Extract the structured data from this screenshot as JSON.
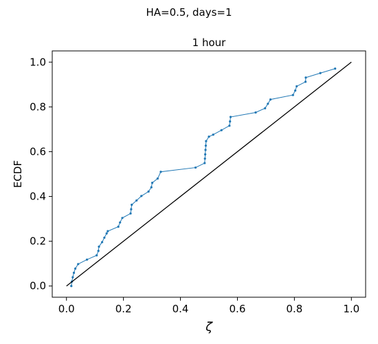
{
  "figure": {
    "suptitle": "HA=0.5, days=1"
  },
  "chart_data": {
    "type": "line",
    "title": "1 hour",
    "xlabel": "ζ",
    "ylabel": "ECDF",
    "xlim": [
      -0.05,
      1.05
    ],
    "ylim": [
      -0.05,
      1.05
    ],
    "xticks": [
      0.0,
      0.2,
      0.4,
      0.6,
      0.8,
      1.0
    ],
    "yticks": [
      0.0,
      0.2,
      0.4,
      0.6,
      0.8,
      1.0
    ],
    "xtick_labels": [
      "0.0",
      "0.2",
      "0.4",
      "0.6",
      "0.8",
      "1.0"
    ],
    "ytick_labels": [
      "0.0",
      "0.2",
      "0.4",
      "0.6",
      "0.8",
      "1.0"
    ],
    "grid": false,
    "series": [
      {
        "role": "empirical",
        "color": "#1f77b4",
        "marker": "dot",
        "x": [
          0.017,
          0.019,
          0.022,
          0.026,
          0.031,
          0.041,
          0.072,
          0.106,
          0.112,
          0.114,
          0.125,
          0.133,
          0.141,
          0.145,
          0.182,
          0.188,
          0.196,
          0.225,
          0.227,
          0.229,
          0.246,
          0.263,
          0.288,
          0.298,
          0.301,
          0.32,
          0.331,
          0.453,
          0.485,
          0.486,
          0.487,
          0.488,
          0.489,
          0.49,
          0.5,
          0.515,
          0.544,
          0.572,
          0.574,
          0.576,
          0.664,
          0.697,
          0.707,
          0.716,
          0.795,
          0.803,
          0.808,
          0.839,
          0.84,
          0.891,
          0.943
        ],
        "y": [
          0.0,
          0.02,
          0.039,
          0.059,
          0.078,
          0.098,
          0.118,
          0.137,
          0.157,
          0.176,
          0.196,
          0.216,
          0.235,
          0.245,
          0.265,
          0.284,
          0.304,
          0.324,
          0.343,
          0.363,
          0.382,
          0.402,
          0.422,
          0.441,
          0.461,
          0.48,
          0.51,
          0.529,
          0.549,
          0.569,
          0.588,
          0.608,
          0.627,
          0.647,
          0.667,
          0.676,
          0.696,
          0.716,
          0.735,
          0.755,
          0.775,
          0.794,
          0.814,
          0.833,
          0.853,
          0.873,
          0.892,
          0.912,
          0.931,
          0.951,
          0.971
        ]
      },
      {
        "role": "reference",
        "color": "#000000",
        "marker": "none",
        "x": [
          0.0,
          1.0
        ],
        "y": [
          0.0,
          1.0
        ]
      }
    ]
  }
}
